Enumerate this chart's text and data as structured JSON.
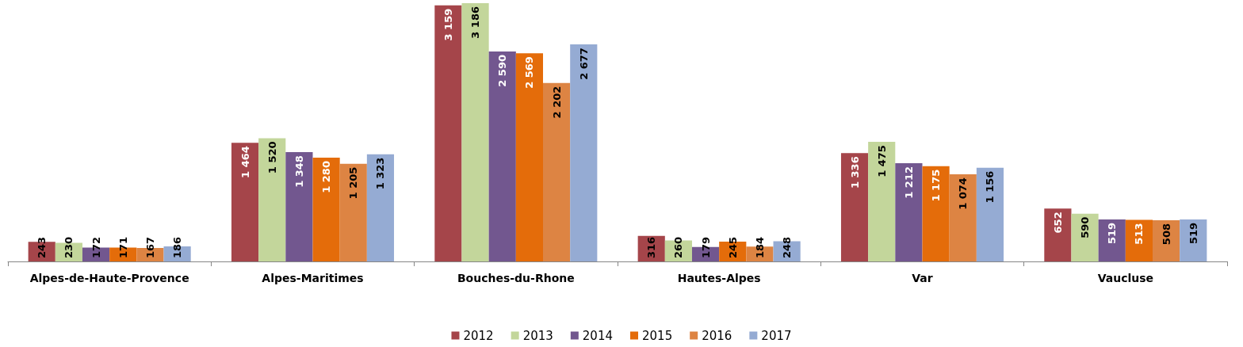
{
  "chart_data": {
    "type": "bar",
    "categories": [
      "Alpes-de-Haute-Provence",
      "Alpes-Maritimes",
      "Bouches-du-Rhone",
      "Hautes-Alpes",
      "Var",
      "Vaucluse"
    ],
    "series": [
      {
        "name": "2012",
        "color": "#a5454a",
        "values": [
          243,
          1464,
          3159,
          316,
          1336,
          652
        ],
        "value_labels": [
          "243",
          "1 464",
          "3 159",
          "316",
          "1 336",
          "652"
        ]
      },
      {
        "name": "2013",
        "color": "#c3d69b",
        "values": [
          230,
          1520,
          3186,
          260,
          1475,
          590
        ],
        "value_labels": [
          "230",
          "1 520",
          "3 186",
          "260",
          "1 475",
          "590"
        ]
      },
      {
        "name": "2014",
        "color": "#72578f",
        "values": [
          172,
          1348,
          2590,
          179,
          1212,
          519
        ],
        "value_labels": [
          "172",
          "1 348",
          "2 590",
          "179",
          "1 212",
          "519"
        ]
      },
      {
        "name": "2015",
        "color": "#e46c0a",
        "values": [
          171,
          1280,
          2569,
          245,
          1175,
          513
        ],
        "value_labels": [
          "171",
          "1 280",
          "2 569",
          "245",
          "1 175",
          "513"
        ]
      },
      {
        "name": "2016",
        "color": "#dd8443",
        "values": [
          167,
          1205,
          2202,
          184,
          1074,
          508
        ],
        "value_labels": [
          "167",
          "1 205",
          "2 202",
          "184",
          "1 074",
          "508"
        ]
      },
      {
        "name": "2017",
        "color": "#95abd3",
        "values": [
          186,
          1323,
          2677,
          248,
          1156,
          519
        ],
        "value_labels": [
          "186",
          "1 323",
          "2 677",
          "248",
          "1 156",
          "519"
        ]
      }
    ],
    "legend": "bottom",
    "grid": false
  }
}
